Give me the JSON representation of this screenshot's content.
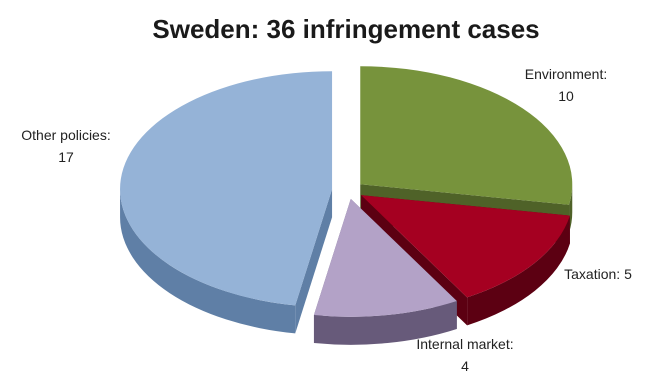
{
  "chart_data": {
    "type": "pie",
    "title": "Sweden: 36 infringement cases",
    "categories": [
      "Environment",
      "Taxation",
      "Internal market",
      "Other policies"
    ],
    "values": [
      10,
      5,
      4,
      17
    ],
    "labels": [
      {
        "line1": "Environment:",
        "line2": "10"
      },
      {
        "line1": "Taxation: 5",
        "line2": ""
      },
      {
        "line1": "Internal market:",
        "line2": "4"
      },
      {
        "line1": "Other policies:",
        "line2": "17"
      }
    ],
    "colors": {
      "top": [
        "#77933c",
        "#a50021",
        "#b3a2c7",
        "#95b3d7"
      ],
      "side": [
        "#4f6228",
        "#5c0012",
        "#675a7a",
        "#5f7fa6"
      ]
    },
    "style": "3d-exploded"
  }
}
